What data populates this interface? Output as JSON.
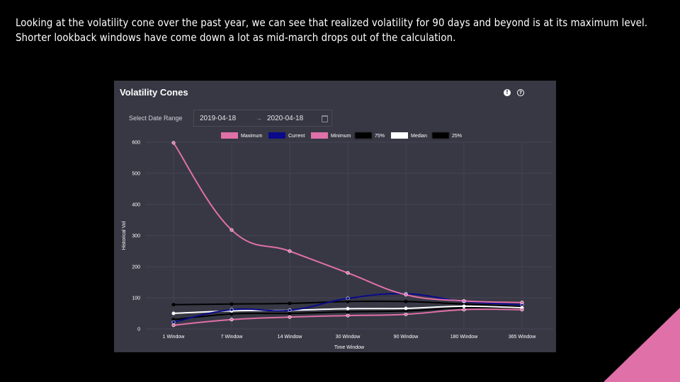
{
  "caption": {
    "line1": "Looking at the volatility cone over the past year, we can see that realized volatility for 90 days and beyond is at its maximum level.",
    "line2": "Shorter lookback windows have come down a lot as mid-march drops out of the calculation."
  },
  "panel": {
    "title": "Volatility Cones",
    "info_icon": "info-icon",
    "help_icon": "help-icon",
    "date_range_label": "Select Date Range",
    "date_start": "2019-04-18",
    "date_arrow": "→",
    "date_end": "2020-04-18",
    "calendar_icon": "calendar-icon"
  },
  "colors": {
    "background": "#000000",
    "panel": "#373844",
    "accent_corner": "#e070a8"
  },
  "chart_data": {
    "type": "line",
    "categories": [
      "1 Window",
      "7 Window",
      "14 Window",
      "30 Window",
      "90 Window",
      "180 Window",
      "365 Window"
    ],
    "xlabel": "Time Window",
    "ylabel": "Historical Vol",
    "ylim": [
      0,
      600
    ],
    "yticks": [
      0,
      100,
      200,
      300,
      400,
      500,
      600
    ],
    "grid": true,
    "legend_position": "top",
    "series": [
      {
        "name": "Maximum",
        "color": "#e070a8",
        "values": [
          598,
          318,
          250,
          180,
          110,
          90,
          85
        ]
      },
      {
        "name": "Current",
        "color": "#0a0a8a",
        "values": [
          22,
          62,
          60,
          98,
          113,
          88,
          78
        ]
      },
      {
        "name": "Minimum",
        "color": "#e070a8",
        "values": [
          12,
          30,
          38,
          43,
          47,
          62,
          62
        ]
      },
      {
        "name": "75%",
        "color": "#000000",
        "values": [
          78,
          80,
          82,
          88,
          88,
          80,
          72
        ]
      },
      {
        "name": "Median",
        "color": "#ffffff",
        "values": [
          50,
          58,
          60,
          65,
          66,
          73,
          68
        ]
      },
      {
        "name": "25%",
        "color": "#000000",
        "values": [
          30,
          48,
          50,
          55,
          58,
          68,
          66
        ]
      }
    ]
  }
}
